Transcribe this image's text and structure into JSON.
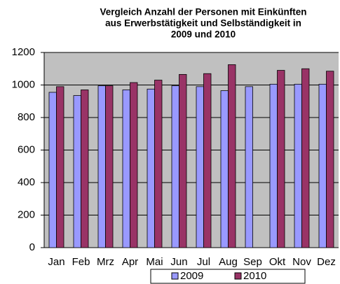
{
  "chart_data": {
    "type": "bar",
    "title": [
      "Vergleich Anzahl der Personen mit Einkünften",
      "aus Erwerbstätigkeit und Selbständigkeit in",
      "2009 und 2010"
    ],
    "categories": [
      "Jan",
      "Feb",
      "Mrz",
      "Apr",
      "Mai",
      "Jun",
      "Jul",
      "Aug",
      "Sep",
      "Okt",
      "Nov",
      "Dez"
    ],
    "series": [
      {
        "name": "2009",
        "color": "#9999ff",
        "values": [
          955,
          935,
          995,
          970,
          975,
          995,
          990,
          965,
          990,
          1005,
          1005,
          1005
        ]
      },
      {
        "name": "2010",
        "color": "#993366",
        "values": [
          990,
          970,
          995,
          1015,
          1030,
          1065,
          1070,
          1125,
          null,
          1090,
          1100,
          1085
        ]
      }
    ],
    "ylim": [
      0,
      1200
    ],
    "yticks": [
      0,
      200,
      400,
      600,
      800,
      1000,
      1200
    ],
    "grid": true,
    "legend": "bottom"
  }
}
